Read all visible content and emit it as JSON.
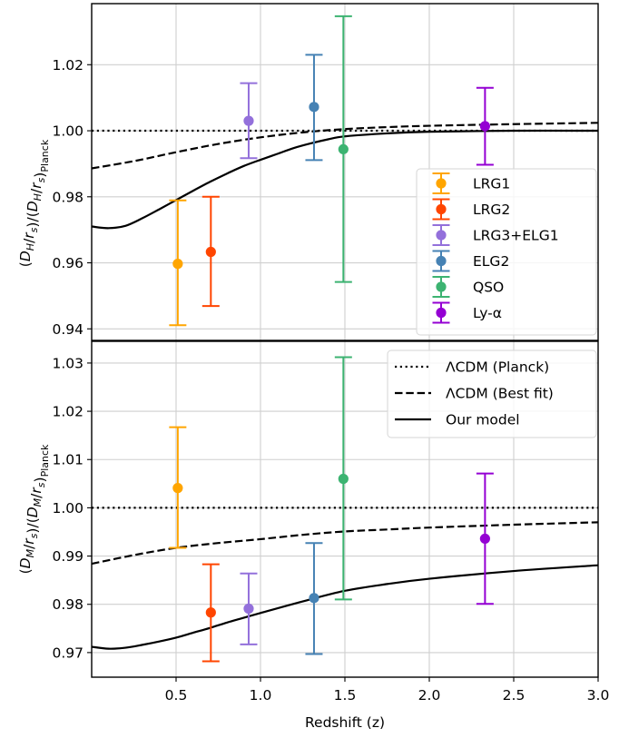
{
  "chart_data": [
    {
      "type": "scatter",
      "panel": "top",
      "title": "",
      "xlabel": "",
      "ylabel": "(D_H/r_s)/(D_H/r_s)_Planck",
      "ylabel_parts": {
        "open": "(",
        "D": "D",
        "H": "H",
        "slash": "/",
        "r": "r",
        "s": "s",
        "close_planck": "Planck"
      },
      "xlim": [
        0.0,
        3.0
      ],
      "ylim": [
        0.9365,
        1.0385
      ],
      "yticks": [
        0.94,
        0.96,
        0.98,
        1.0,
        1.02
      ],
      "ytick_labels": [
        "0.94",
        "0.96",
        "0.98",
        "1.00",
        "1.02"
      ],
      "grid": true,
      "legend_position": "center-right",
      "points": [
        {
          "name": "LRG1",
          "color": "#FFA500",
          "x": 0.51,
          "y": 0.9597,
          "yerr_low": 0.9411,
          "yerr_high": 0.9789
        },
        {
          "name": "LRG2",
          "color": "#FF4500",
          "x": 0.706,
          "y": 0.9633,
          "yerr_low": 0.9469,
          "yerr_high": 0.98
        },
        {
          "name": "LRG3+ELG1",
          "color": "#9370DB",
          "x": 0.93,
          "y": 1.003,
          "yerr_low": 0.9917,
          "yerr_high": 1.0144
        },
        {
          "name": "ELG2",
          "color": "#4682B4",
          "x": 1.317,
          "y": 1.0072,
          "yerr_low": 0.9911,
          "yerr_high": 1.023
        },
        {
          "name": "QSO",
          "color": "#3CB371",
          "x": 1.491,
          "y": 0.9944,
          "yerr_low": 0.9542,
          "yerr_high": 1.0347
        },
        {
          "name": "Ly-α",
          "color": "#9400D3",
          "x": 2.33,
          "y": 1.0014,
          "yerr_low": 0.9897,
          "yerr_high": 1.013
        }
      ],
      "curves": [
        {
          "name": "ΛCDM (Planck)",
          "style": "dotted",
          "x": [
            0.0,
            3.0
          ],
          "y": [
            1.0,
            1.0
          ]
        },
        {
          "name": "ΛCDM (Best fit)",
          "style": "dashed",
          "x": [
            0.0,
            0.25,
            0.5,
            0.75,
            1.0,
            1.25,
            1.5,
            1.75,
            2.0,
            2.5,
            3.0
          ],
          "y": [
            0.9886,
            0.9908,
            0.9935,
            0.996,
            0.998,
            0.9995,
            1.0005,
            1.0011,
            1.0015,
            1.002,
            1.0024
          ]
        },
        {
          "name": "Our model",
          "style": "solid",
          "x": [
            0.0,
            0.1,
            0.2,
            0.3,
            0.4,
            0.5,
            0.6,
            0.7,
            0.8,
            0.9,
            1.0,
            1.1,
            1.2,
            1.3,
            1.4,
            1.5,
            1.75,
            2.0,
            2.5,
            3.0
          ],
          "y": [
            0.971,
            0.9705,
            0.9712,
            0.9735,
            0.9762,
            0.979,
            0.9818,
            0.9845,
            0.987,
            0.9893,
            0.9912,
            0.993,
            0.9948,
            0.9962,
            0.9974,
            0.9983,
            0.9992,
            0.9997,
            1.0,
            1.0
          ]
        }
      ]
    },
    {
      "type": "scatter",
      "panel": "bottom",
      "title": "",
      "xlabel": "Redshift (z)",
      "ylabel": "(D_M/r_s)/(D_M/r_s)_Planck",
      "xlim": [
        0.0,
        3.0
      ],
      "ylim": [
        0.9649,
        1.0345
      ],
      "xticks": [
        0.5,
        1.0,
        1.5,
        2.0,
        2.5,
        3.0
      ],
      "xtick_labels": [
        "0.5",
        "1.0",
        "1.5",
        "2.0",
        "2.5",
        "3.0"
      ],
      "yticks": [
        0.97,
        0.98,
        0.99,
        1.0,
        1.01,
        1.02,
        1.03
      ],
      "ytick_labels": [
        "0.97",
        "0.98",
        "0.99",
        "1.00",
        "1.01",
        "1.02",
        "1.03"
      ],
      "grid": true,
      "legend_position": "top-right",
      "points": [
        {
          "name": "LRG1",
          "color": "#FFA500",
          "x": 0.51,
          "y": 1.0041,
          "yerr_low": 0.9917,
          "yerr_high": 1.0167
        },
        {
          "name": "LRG2",
          "color": "#FF4500",
          "x": 0.706,
          "y": 0.9783,
          "yerr_low": 0.9682,
          "yerr_high": 0.9883
        },
        {
          "name": "LRG3+ELG1",
          "color": "#9370DB",
          "x": 0.93,
          "y": 0.9791,
          "yerr_low": 0.9717,
          "yerr_high": 0.9864
        },
        {
          "name": "ELG2",
          "color": "#4682B4",
          "x": 1.317,
          "y": 0.9813,
          "yerr_low": 0.9697,
          "yerr_high": 0.9927
        },
        {
          "name": "QSO",
          "color": "#3CB371",
          "x": 1.491,
          "y": 1.006,
          "yerr_low": 0.981,
          "yerr_high": 1.0312
        },
        {
          "name": "Ly-α",
          "color": "#9400D3",
          "x": 2.33,
          "y": 0.9936,
          "yerr_low": 0.9801,
          "yerr_high": 1.0071
        }
      ],
      "curves": [
        {
          "name": "ΛCDM (Planck)",
          "style": "dotted",
          "x": [
            0.0,
            3.0
          ],
          "y": [
            1.0,
            1.0
          ]
        },
        {
          "name": "ΛCDM (Best fit)",
          "style": "dashed",
          "x": [
            0.0,
            0.25,
            0.5,
            0.75,
            1.0,
            1.25,
            1.5,
            1.75,
            2.0,
            2.5,
            3.0
          ],
          "y": [
            0.9884,
            0.9902,
            0.9917,
            0.9927,
            0.9935,
            0.9944,
            0.9951,
            0.9955,
            0.9959,
            0.9965,
            0.997
          ]
        },
        {
          "name": "Our model",
          "style": "solid",
          "x": [
            0.0,
            0.1,
            0.2,
            0.3,
            0.4,
            0.5,
            0.6,
            0.7,
            0.8,
            0.9,
            1.0,
            1.25,
            1.5,
            1.75,
            2.0,
            2.5,
            3.0
          ],
          "y": [
            0.9712,
            0.9708,
            0.971,
            0.9716,
            0.9723,
            0.9731,
            0.9741,
            0.9751,
            0.9762,
            0.9772,
            0.9782,
            0.9806,
            0.9828,
            0.9842,
            0.9853,
            0.9869,
            0.9881
          ]
        }
      ]
    }
  ],
  "legends": {
    "top": {
      "entries": [
        {
          "label": "LRG1",
          "color": "#FFA500"
        },
        {
          "label": "LRG2",
          "color": "#FF4500"
        },
        {
          "label": "LRG3+ELG1",
          "color": "#9370DB"
        },
        {
          "label": "ELG2",
          "color": "#4682B4"
        },
        {
          "label": "QSO",
          "color": "#3CB371"
        },
        {
          "label": "Ly-α",
          "color": "#9400D3"
        }
      ]
    },
    "bottom": {
      "entries": [
        {
          "label": "ΛCDM (Planck)",
          "style": "dotted"
        },
        {
          "label": "ΛCDM (Best fit)",
          "style": "dashed"
        },
        {
          "label": "Our model",
          "style": "solid"
        }
      ]
    }
  }
}
